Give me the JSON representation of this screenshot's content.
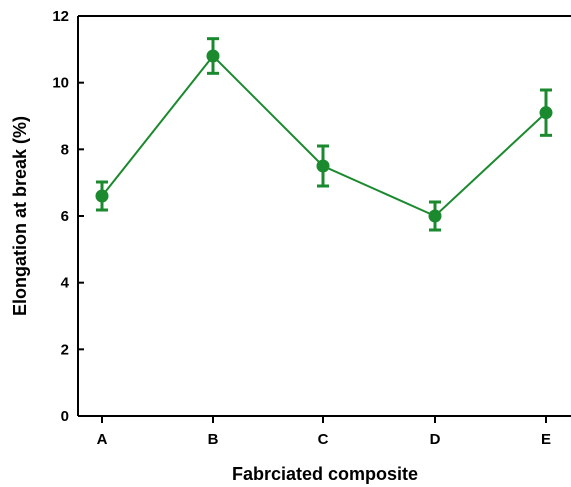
{
  "chart_data": {
    "type": "line",
    "title": "",
    "xlabel": "Fabrciated composite",
    "ylabel": "Elongation at break (%)",
    "categories": [
      "A",
      "B",
      "C",
      "D",
      "E"
    ],
    "values": [
      6.6,
      10.8,
      7.5,
      6.0,
      9.1
    ],
    "errors": [
      0.42,
      0.52,
      0.6,
      0.42,
      0.68
    ],
    "ylim": [
      0,
      12
    ],
    "yticks": [
      0,
      2,
      4,
      6,
      8,
      10,
      12
    ],
    "grid": false,
    "legend": "none",
    "colors": {
      "series": "#1b8a2f",
      "axis": "#000000"
    }
  }
}
